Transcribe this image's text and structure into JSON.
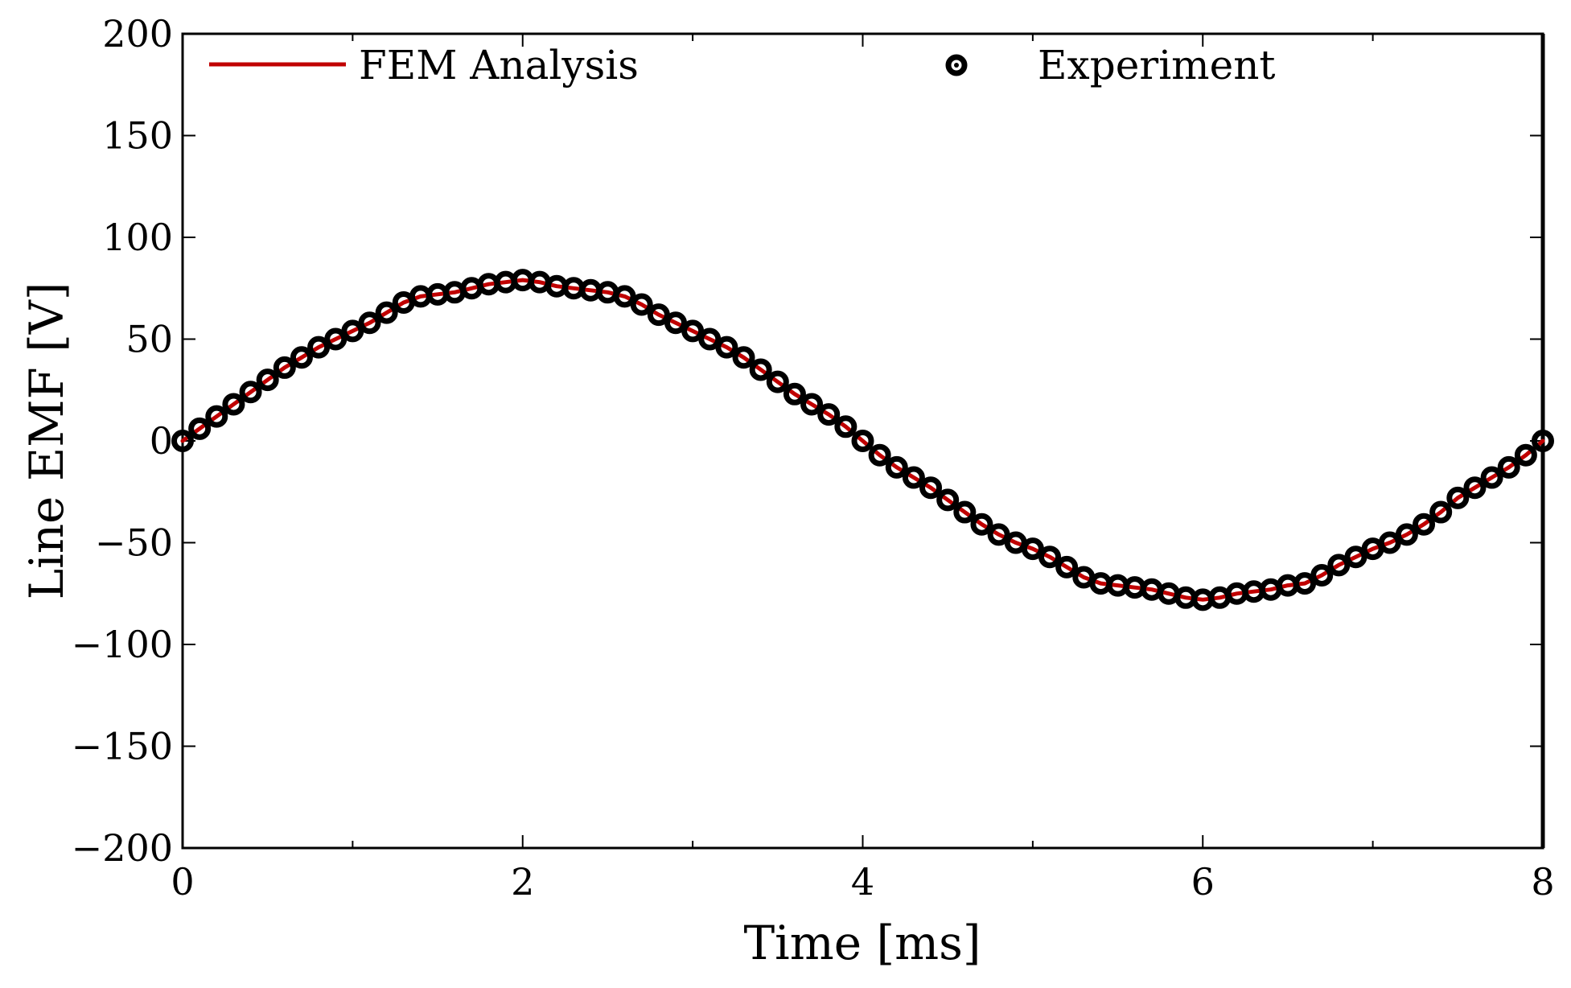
{
  "chart_data": {
    "type": "line",
    "title": "",
    "xlabel": "Time [ms]",
    "ylabel": "Line EMF [V]",
    "xlim": [
      0,
      8
    ],
    "ylim": [
      -200,
      200
    ],
    "xticks": [
      0,
      2,
      4,
      6,
      8
    ],
    "xtick_labels": [
      "0",
      "2",
      "4",
      "6",
      "8"
    ],
    "xminor_ticks": [
      1,
      3,
      5,
      7
    ],
    "yticks": [
      -200,
      -150,
      -100,
      -50,
      0,
      50,
      100,
      150,
      200
    ],
    "ytick_labels": [
      "−200",
      "−150",
      "−100",
      "−50",
      "0",
      "50",
      "100",
      "150",
      "200"
    ],
    "grid": false,
    "legend": {
      "placement": "top",
      "ncol": 2
    },
    "series": [
      {
        "name": "FEM Analysis",
        "kind": "line",
        "color": "#c00000",
        "x": [
          0,
          0.1,
          0.2,
          0.3,
          0.4,
          0.5,
          0.6,
          0.7,
          0.8,
          0.9,
          1.0,
          1.1,
          1.2,
          1.3,
          1.4,
          1.5,
          1.6,
          1.7,
          1.8,
          1.9,
          2.0,
          2.1,
          2.2,
          2.3,
          2.4,
          2.5,
          2.6,
          2.7,
          2.8,
          2.9,
          3.0,
          3.1,
          3.2,
          3.3,
          3.4,
          3.5,
          3.6,
          3.7,
          3.8,
          3.9,
          4.0,
          4.1,
          4.2,
          4.3,
          4.4,
          4.5,
          4.6,
          4.7,
          4.8,
          4.9,
          5.0,
          5.1,
          5.2,
          5.3,
          5.4,
          5.5,
          5.6,
          5.7,
          5.8,
          5.9,
          6.0,
          6.1,
          6.2,
          6.3,
          6.4,
          6.5,
          6.6,
          6.7,
          6.8,
          6.9,
          7.0,
          7.1,
          7.2,
          7.3,
          7.4,
          7.5,
          7.6,
          7.7,
          7.8,
          7.9,
          8.0
        ],
        "y": [
          0,
          6,
          12,
          18,
          24,
          30,
          36,
          41,
          46,
          50,
          54,
          58,
          63,
          68,
          71,
          72,
          73,
          75,
          77,
          78,
          79,
          78,
          76,
          75,
          74,
          73,
          71,
          67,
          62,
          58,
          54,
          50,
          46,
          41,
          35,
          29,
          23,
          18,
          13,
          7,
          0,
          -7,
          -13,
          -18,
          -23,
          -29,
          -35,
          -41,
          -46,
          -50,
          -53,
          -57,
          -62,
          -67,
          -70,
          -71,
          -72,
          -73,
          -75,
          -77,
          -78,
          -77,
          -75,
          -74,
          -73,
          -71,
          -70,
          -66,
          -61,
          -57,
          -53,
          -50,
          -46,
          -41,
          -35,
          -28,
          -23,
          -18,
          -13,
          -7,
          0
        ]
      },
      {
        "name": "Experiment",
        "kind": "scatter",
        "color": "#000000",
        "x": [
          0,
          0.1,
          0.2,
          0.3,
          0.4,
          0.5,
          0.6,
          0.7,
          0.8,
          0.9,
          1.0,
          1.1,
          1.2,
          1.3,
          1.4,
          1.5,
          1.6,
          1.7,
          1.8,
          1.9,
          2.0,
          2.1,
          2.2,
          2.3,
          2.4,
          2.5,
          2.6,
          2.7,
          2.8,
          2.9,
          3.0,
          3.1,
          3.2,
          3.3,
          3.4,
          3.5,
          3.6,
          3.7,
          3.8,
          3.9,
          4.0,
          4.1,
          4.2,
          4.3,
          4.4,
          4.5,
          4.6,
          4.7,
          4.8,
          4.9,
          5.0,
          5.1,
          5.2,
          5.3,
          5.4,
          5.5,
          5.6,
          5.7,
          5.8,
          5.9,
          6.0,
          6.1,
          6.2,
          6.3,
          6.4,
          6.5,
          6.6,
          6.7,
          6.8,
          6.9,
          7.0,
          7.1,
          7.2,
          7.3,
          7.4,
          7.5,
          7.6,
          7.7,
          7.8,
          7.9,
          8.0
        ],
        "y": [
          0,
          6,
          12,
          18,
          24,
          30,
          36,
          41,
          46,
          50,
          54,
          58,
          63,
          68,
          71,
          72,
          73,
          75,
          77,
          78,
          79,
          78,
          76,
          75,
          74,
          73,
          71,
          67,
          62,
          58,
          54,
          50,
          46,
          41,
          35,
          29,
          23,
          18,
          13,
          7,
          0,
          -7,
          -13,
          -18,
          -23,
          -29,
          -35,
          -41,
          -46,
          -50,
          -53,
          -57,
          -62,
          -67,
          -70,
          -71,
          -72,
          -73,
          -75,
          -77,
          -78,
          -77,
          -75,
          -74,
          -73,
          -71,
          -70,
          -66,
          -61,
          -57,
          -53,
          -50,
          -46,
          -41,
          -35,
          -28,
          -23,
          -18,
          -13,
          -7,
          0
        ]
      }
    ]
  }
}
